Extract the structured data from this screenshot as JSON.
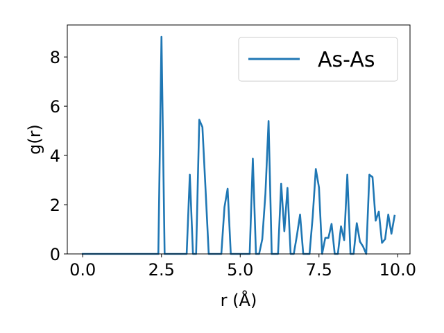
{
  "chart_data": {
    "type": "line",
    "title": "",
    "xlabel": "r (Å)",
    "ylabel": "g(r)",
    "xlim": [
      -0.49,
      10.39
    ],
    "ylim": [
      0,
      9.3
    ],
    "xticks": [
      0.0,
      2.5,
      5.0,
      7.5,
      10.0
    ],
    "xtick_labels": [
      "0.0",
      "2.5",
      "5.0",
      "7.5",
      "10.0"
    ],
    "yticks": [
      0,
      2,
      4,
      6,
      8
    ],
    "ytick_labels": [
      "0",
      "2",
      "4",
      "6",
      "8"
    ],
    "grid": false,
    "legend_position": "upper right",
    "series": [
      {
        "name": "As-As",
        "color": "#1f77b4",
        "x": [
          0.0,
          0.1,
          0.2,
          0.3,
          0.4,
          0.5,
          0.6,
          0.7,
          0.8,
          0.9,
          1.0,
          1.1,
          1.2,
          1.3,
          1.4,
          1.5,
          1.6,
          1.7,
          1.8,
          1.9,
          2.0,
          2.1,
          2.2,
          2.3,
          2.4,
          2.5,
          2.6,
          2.7,
          2.8,
          2.9,
          3.0,
          3.1,
          3.2,
          3.3,
          3.4,
          3.5,
          3.6,
          3.7,
          3.8,
          3.9,
          4.0,
          4.1,
          4.2,
          4.3,
          4.4,
          4.5,
          4.6,
          4.7,
          4.8,
          4.9,
          5.0,
          5.1,
          5.2,
          5.3,
          5.4,
          5.5,
          5.6,
          5.7,
          5.8,
          5.9,
          6.0,
          6.1,
          6.2,
          6.3,
          6.4,
          6.5,
          6.6,
          6.7,
          6.8,
          6.9,
          7.0,
          7.1,
          7.2,
          7.3,
          7.4,
          7.5,
          7.6,
          7.7,
          7.8,
          7.9,
          8.0,
          8.1,
          8.2,
          8.3,
          8.4,
          8.5,
          8.6,
          8.7,
          8.8,
          8.9,
          9.0,
          9.1,
          9.2,
          9.3,
          9.4,
          9.5,
          9.6,
          9.7,
          9.8,
          9.9
        ],
        "y": [
          0,
          0,
          0,
          0,
          0,
          0,
          0,
          0,
          0,
          0,
          0,
          0,
          0,
          0,
          0,
          0,
          0,
          0,
          0,
          0,
          0,
          0,
          0,
          0,
          0,
          8.82,
          0,
          0,
          0,
          0,
          0,
          0,
          0,
          0,
          3.22,
          0,
          0,
          5.45,
          5.15,
          2.6,
          0,
          0,
          0,
          0,
          0,
          1.9,
          2.65,
          0,
          0,
          0,
          0,
          0,
          0,
          0,
          3.87,
          0,
          0,
          0.6,
          2.45,
          5.4,
          0,
          0,
          0,
          2.85,
          0.92,
          2.68,
          0,
          0,
          0.75,
          1.6,
          0,
          0,
          0,
          1.5,
          3.45,
          2.7,
          0,
          0.65,
          0.65,
          1.22,
          0,
          0,
          1.12,
          0.56,
          3.22,
          0,
          0,
          1.25,
          0.5,
          0.3,
          0,
          3.22,
          3.12,
          1.35,
          1.72,
          0.45,
          0.6,
          1.6,
          0.82,
          1.55
        ]
      }
    ]
  }
}
